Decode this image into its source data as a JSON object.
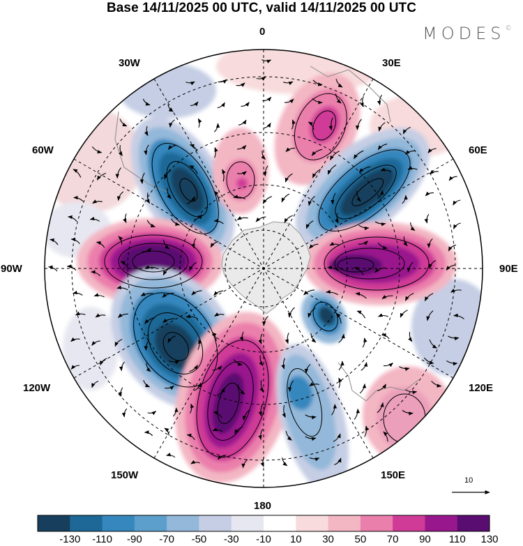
{
  "title": "Base 14/11/2025 00 UTC, valid 14/11/2025 00 UTC",
  "brand": {
    "name": "MODES",
    "mark": "©"
  },
  "longitude_labels": {
    "n0": "0",
    "e30": "30E",
    "e60": "60E",
    "e90": "90E",
    "e120": "120E",
    "e150": "150E",
    "s180": "180",
    "w150": "150W",
    "w120": "120W",
    "w90": "90W",
    "w60": "60W",
    "w30": "30W"
  },
  "vector_reference": {
    "value": "10"
  },
  "colorbar": {
    "tick_labels": [
      "-130",
      "-110",
      "-90",
      "-70",
      "-50",
      "-30",
      "-10",
      "10",
      "30",
      "50",
      "70",
      "90",
      "110",
      "130"
    ],
    "colors": [
      "#173f5d",
      "#1d6896",
      "#3587bd",
      "#5d9fcc",
      "#93b8d9",
      "#c5cee4",
      "#e7e7f1",
      "#ffffff",
      "#f8dbdc",
      "#f3b6c3",
      "#eb7fac",
      "#cf3b97",
      "#99178d",
      "#5a0d70"
    ]
  },
  "colors": {
    "land": "#eaeaea",
    "frame": "#000000"
  }
}
